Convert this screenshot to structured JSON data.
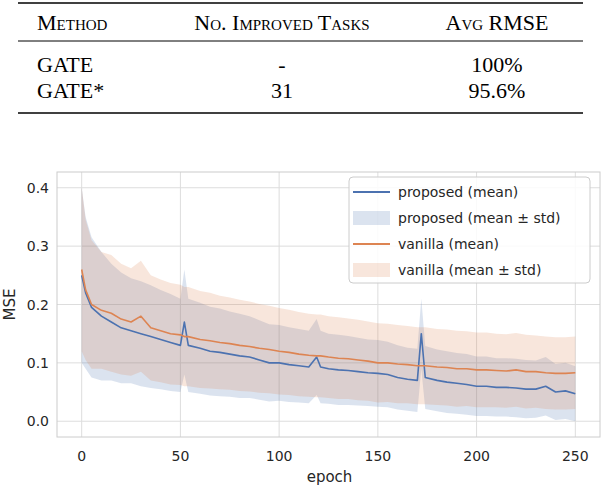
{
  "table": {
    "header": [
      "Method",
      "No. Improved Tasks",
      "Avg RMSE"
    ],
    "rows": [
      [
        "GATE",
        "-",
        "100%"
      ],
      [
        "GATE*",
        "31",
        "95.6%"
      ]
    ]
  },
  "chart_data": {
    "type": "line",
    "x_label": "epoch",
    "y_label": "MSE",
    "x": [
      0,
      2,
      5,
      10,
      15,
      20,
      25,
      30,
      35,
      40,
      45,
      50,
      52,
      54,
      60,
      65,
      70,
      75,
      80,
      85,
      90,
      95,
      100,
      105,
      110,
      115,
      119,
      121,
      125,
      130,
      135,
      140,
      145,
      150,
      155,
      160,
      165,
      170,
      172,
      174,
      180,
      185,
      190,
      195,
      200,
      205,
      210,
      215,
      220,
      225,
      230,
      235,
      240,
      245,
      250
    ],
    "series": [
      {
        "name": "proposed (mean)",
        "std_name": "proposed (mean ± std)",
        "color": "#4c72b0",
        "values": [
          0.25,
          0.22,
          0.195,
          0.18,
          0.17,
          0.16,
          0.155,
          0.15,
          0.145,
          0.14,
          0.135,
          0.13,
          0.17,
          0.13,
          0.125,
          0.12,
          0.118,
          0.115,
          0.112,
          0.11,
          0.105,
          0.1,
          0.1,
          0.097,
          0.095,
          0.093,
          0.11,
          0.093,
          0.09,
          0.088,
          0.087,
          0.085,
          0.083,
          0.082,
          0.08,
          0.075,
          0.072,
          0.07,
          0.15,
          0.075,
          0.07,
          0.067,
          0.065,
          0.063,
          0.06,
          0.06,
          0.058,
          0.058,
          0.057,
          0.055,
          0.055,
          0.06,
          0.05,
          0.052,
          0.047
        ],
        "std": [
          0.15,
          0.13,
          0.12,
          0.11,
          0.1,
          0.095,
          0.09,
          0.09,
          0.088,
          0.085,
          0.083,
          0.08,
          0.09,
          0.08,
          0.078,
          0.076,
          0.075,
          0.073,
          0.072,
          0.07,
          0.068,
          0.066,
          0.065,
          0.064,
          0.063,
          0.062,
          0.065,
          0.062,
          0.06,
          0.06,
          0.059,
          0.058,
          0.057,
          0.057,
          0.056,
          0.055,
          0.054,
          0.054,
          0.06,
          0.054,
          0.053,
          0.053,
          0.052,
          0.052,
          0.051,
          0.051,
          0.05,
          0.05,
          0.05,
          0.05,
          0.049,
          0.05,
          0.048,
          0.048,
          0.047
        ]
      },
      {
        "name": "vanilla (mean)",
        "std_name": "vanilla (mean ± std)",
        "color": "#dd8452",
        "values": [
          0.26,
          0.225,
          0.2,
          0.19,
          0.185,
          0.175,
          0.17,
          0.18,
          0.16,
          0.155,
          0.15,
          0.148,
          0.145,
          0.145,
          0.14,
          0.138,
          0.135,
          0.133,
          0.13,
          0.128,
          0.125,
          0.123,
          0.12,
          0.118,
          0.115,
          0.113,
          0.112,
          0.112,
          0.11,
          0.108,
          0.107,
          0.105,
          0.103,
          0.1,
          0.1,
          0.098,
          0.097,
          0.095,
          0.095,
          0.095,
          0.093,
          0.092,
          0.09,
          0.09,
          0.088,
          0.088,
          0.087,
          0.086,
          0.088,
          0.085,
          0.085,
          0.083,
          0.082,
          0.082,
          0.083
        ],
        "std": [
          0.14,
          0.12,
          0.11,
          0.1,
          0.1,
          0.095,
          0.092,
          0.095,
          0.09,
          0.088,
          0.087,
          0.086,
          0.085,
          0.085,
          0.083,
          0.082,
          0.08,
          0.079,
          0.078,
          0.077,
          0.076,
          0.075,
          0.074,
          0.073,
          0.072,
          0.071,
          0.071,
          0.071,
          0.07,
          0.07,
          0.069,
          0.069,
          0.068,
          0.068,
          0.067,
          0.067,
          0.066,
          0.066,
          0.066,
          0.066,
          0.065,
          0.065,
          0.065,
          0.064,
          0.064,
          0.064,
          0.063,
          0.063,
          0.063,
          0.063,
          0.062,
          0.062,
          0.062,
          0.062,
          0.062
        ]
      }
    ],
    "xlim": [
      -12.5,
      262.5
    ],
    "xticks": [
      0,
      50,
      100,
      150,
      200,
      250
    ],
    "ylim": [
      -0.027,
      0.427
    ],
    "yticks": [
      {
        "value": 0,
        "label": "0.0"
      },
      0.1,
      0.2,
      0.3,
      0.4
    ],
    "grid": true,
    "legend": "upper right"
  }
}
